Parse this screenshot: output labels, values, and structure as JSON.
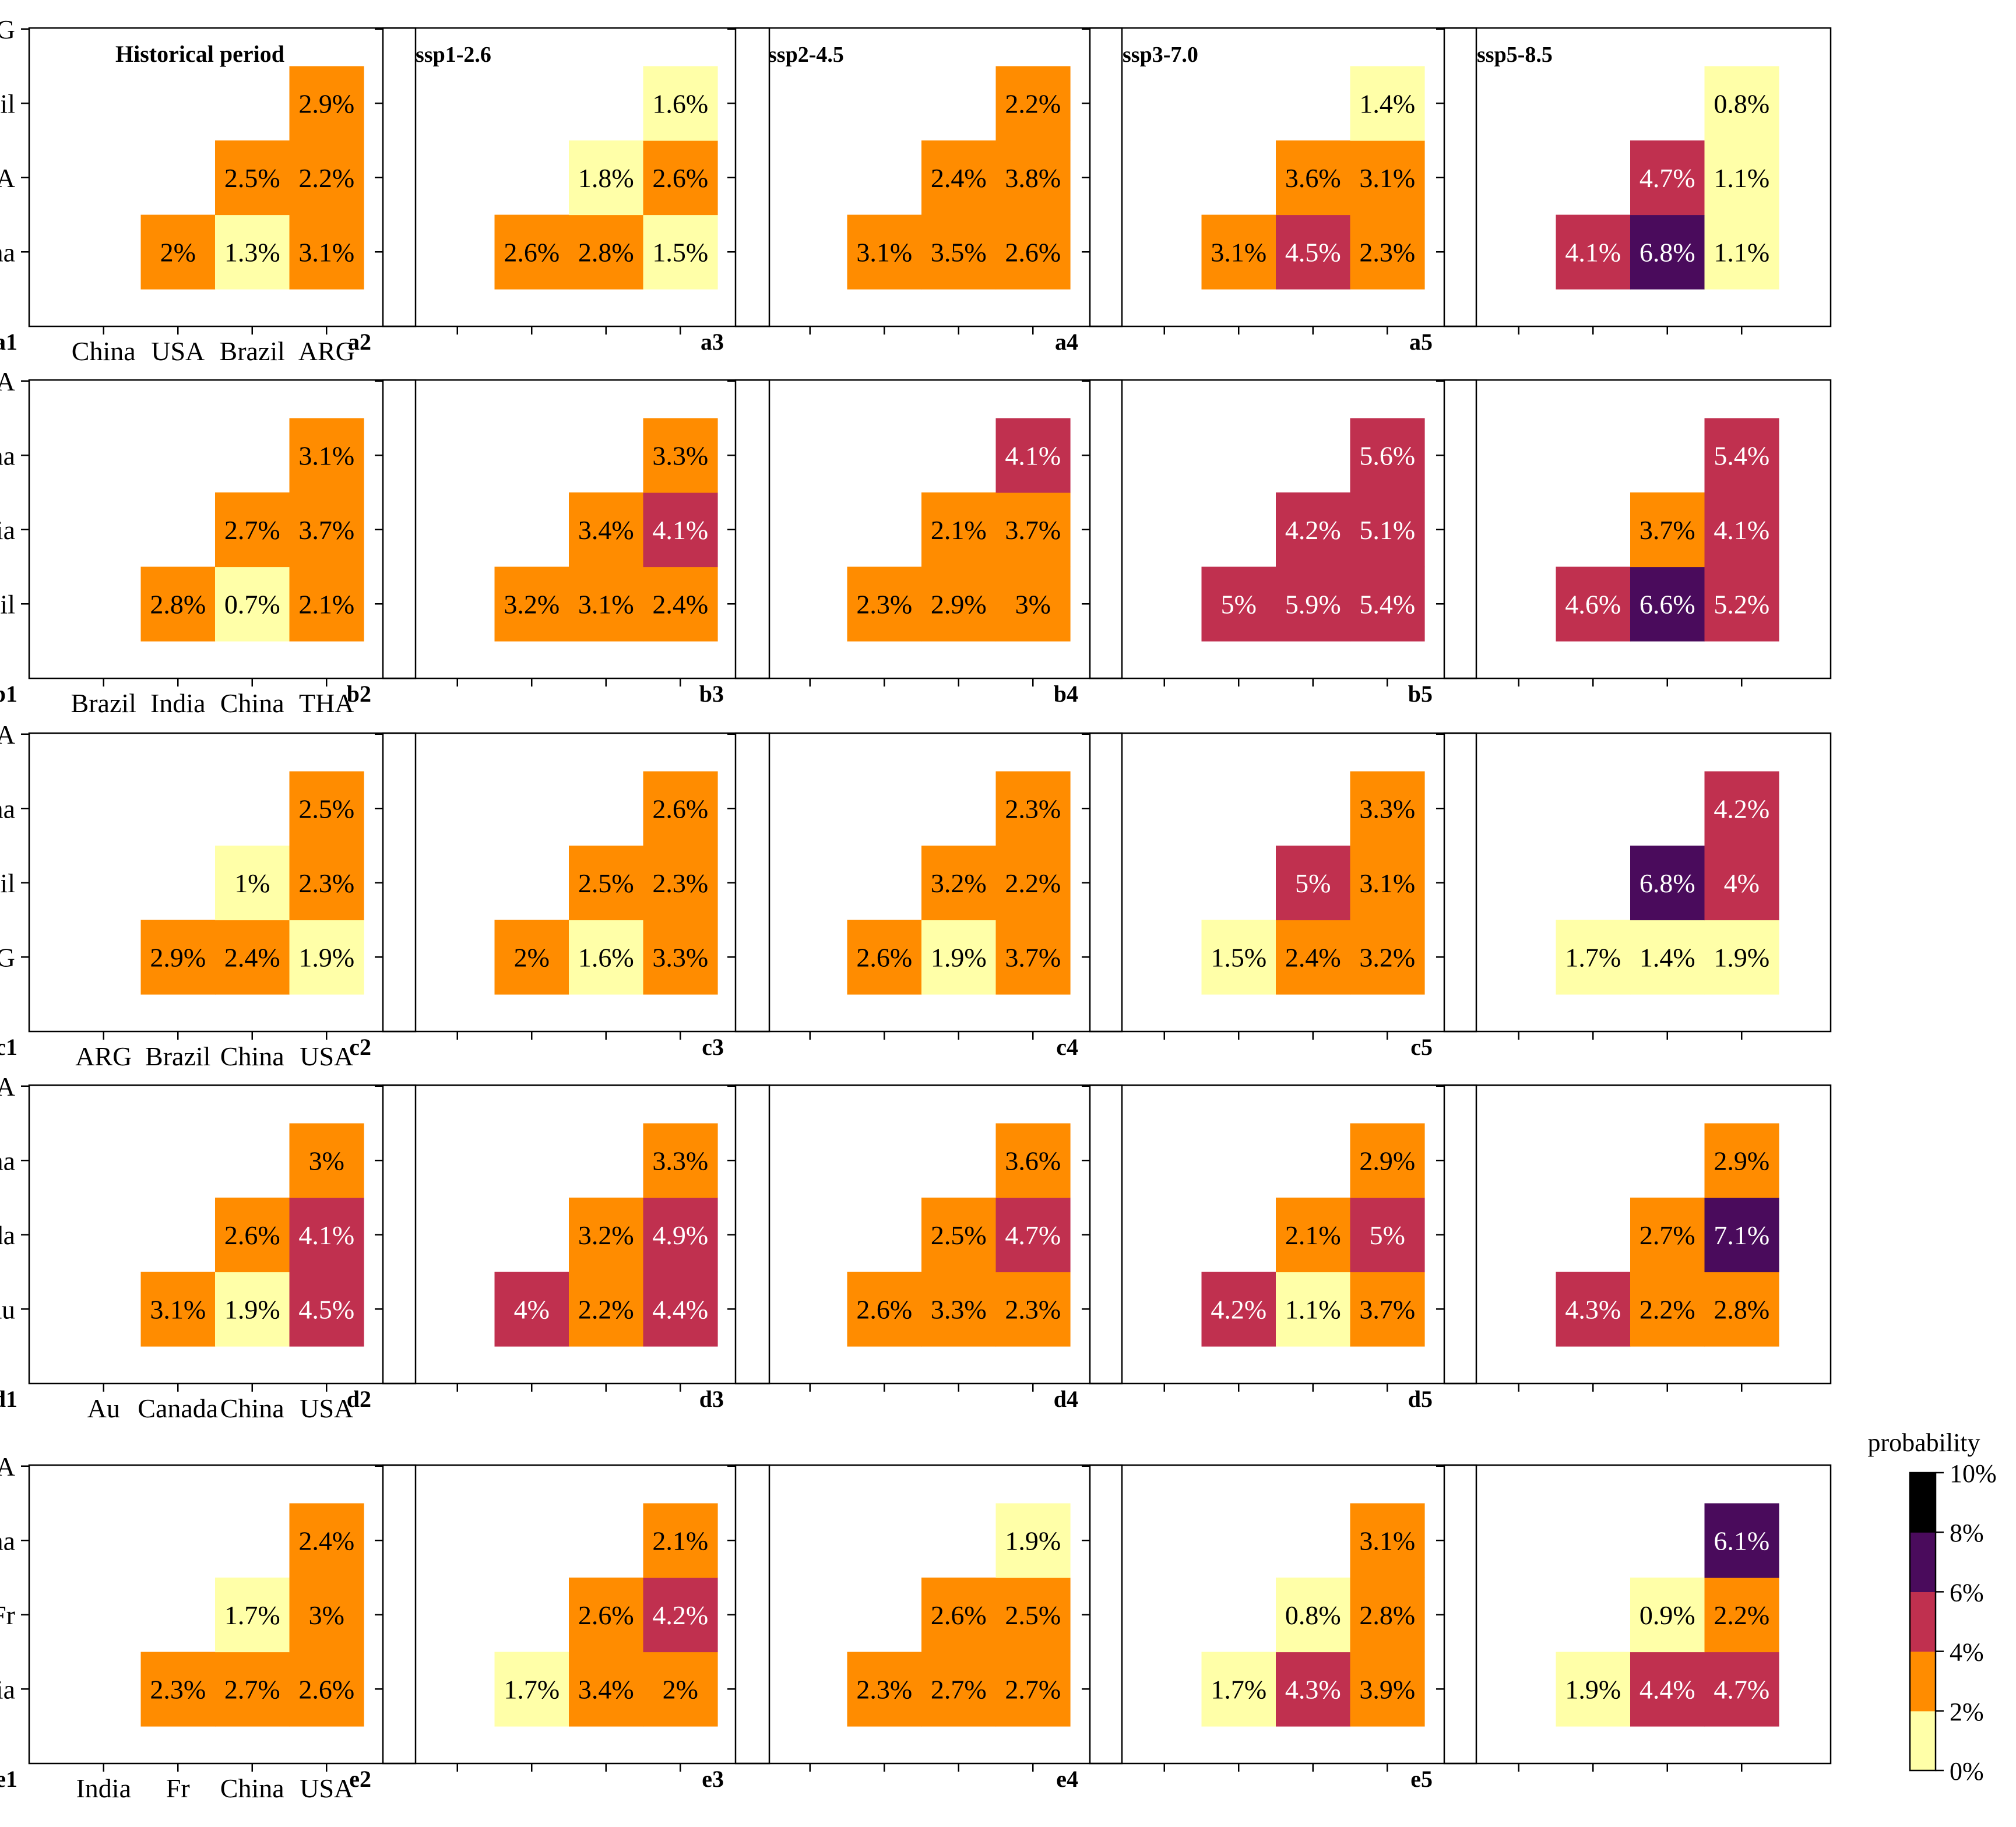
{
  "chart_data": {
    "type": "heatmap",
    "description_units": "joint probability (%)",
    "colorbar": {
      "title": "probability",
      "bins": [
        {
          "from": 0,
          "to": 2,
          "color": "#ffffa8"
        },
        {
          "from": 2,
          "to": 4,
          "color": "#ff8c00"
        },
        {
          "from": 4,
          "to": 6,
          "color": "#c0304f"
        },
        {
          "from": 6,
          "to": 8,
          "color": "#4a0b5c"
        },
        {
          "from": 8,
          "to": 10,
          "color": "#000000"
        }
      ],
      "tick_labels": [
        "0%",
        "2%",
        "4%",
        "6%",
        "8%",
        "10%"
      ]
    },
    "column_titles": [
      "Historical period",
      "ssp1-2.6",
      "ssp2-4.5",
      "ssp3-7.0",
      "ssp5-8.5"
    ],
    "rows": [
      {
        "countries": [
          "China",
          "USA",
          "Brazil",
          "ARG"
        ],
        "panel_labels": [
          "a1",
          "a2",
          "a3",
          "a4",
          "a5"
        ],
        "panels": [
          {
            "USA|China": "2%",
            "Brazil|China": "1.3%",
            "Brazil|USA": "2.5%",
            "ARG|China": "3.1%",
            "ARG|USA": "2.2%",
            "ARG|Brazil": "2.9%"
          },
          {
            "USA|China": "2.6%",
            "Brazil|China": "2.8%",
            "Brazil|USA": "1.8%",
            "ARG|China": "1.5%",
            "ARG|USA": "2.6%",
            "ARG|Brazil": "1.6%"
          },
          {
            "USA|China": "3.1%",
            "Brazil|China": "3.5%",
            "Brazil|USA": "2.4%",
            "ARG|China": "2.6%",
            "ARG|USA": "3.8%",
            "ARG|Brazil": "2.2%"
          },
          {
            "USA|China": "3.1%",
            "Brazil|China": "4.5%",
            "Brazil|USA": "3.6%",
            "ARG|China": "2.3%",
            "ARG|USA": "3.1%",
            "ARG|Brazil": "1.4%"
          },
          {
            "USA|China": "4.1%",
            "Brazil|China": "6.8%",
            "Brazil|USA": "4.7%",
            "ARG|China": "1.1%",
            "ARG|USA": "1.1%",
            "ARG|Brazil": "0.8%"
          }
        ]
      },
      {
        "countries": [
          "Brazil",
          "India",
          "China",
          "THA"
        ],
        "panel_labels": [
          "b1",
          "b2",
          "b3",
          "b4",
          "b5"
        ],
        "panels": [
          {
            "India|Brazil": "2.8%",
            "China|Brazil": "0.7%",
            "China|India": "2.7%",
            "THA|Brazil": "2.1%",
            "THA|India": "3.7%",
            "THA|China": "3.1%"
          },
          {
            "India|Brazil": "3.2%",
            "China|Brazil": "3.1%",
            "China|India": "3.4%",
            "THA|Brazil": "2.4%",
            "THA|India": "4.1%",
            "THA|China": "3.3%"
          },
          {
            "India|Brazil": "2.3%",
            "China|Brazil": "2.9%",
            "China|India": "2.1%",
            "THA|Brazil": "3%",
            "THA|India": "3.7%",
            "THA|China": "4.1%"
          },
          {
            "India|Brazil": "5%",
            "China|Brazil": "5.9%",
            "China|India": "4.2%",
            "THA|Brazil": "5.4%",
            "THA|India": "5.1%",
            "THA|China": "5.6%"
          },
          {
            "India|Brazil": "4.6%",
            "China|Brazil": "6.6%",
            "China|India": "3.7%",
            "THA|Brazil": "5.2%",
            "THA|India": "4.1%",
            "THA|China": "5.4%"
          }
        ]
      },
      {
        "countries": [
          "ARG",
          "Brazil",
          "China",
          "USA"
        ],
        "panel_labels": [
          "c1",
          "c2",
          "c3",
          "c4",
          "c5"
        ],
        "panels": [
          {
            "Brazil|ARG": "2.9%",
            "China|ARG": "2.4%",
            "China|Brazil": "1%",
            "USA|ARG": "1.9%",
            "USA|Brazil": "2.3%",
            "USA|China": "2.5%"
          },
          {
            "Brazil|ARG": "2%",
            "China|ARG": "1.6%",
            "China|Brazil": "2.5%",
            "USA|ARG": "3.3%",
            "USA|Brazil": "2.3%",
            "USA|China": "2.6%"
          },
          {
            "Brazil|ARG": "2.6%",
            "China|ARG": "1.9%",
            "China|Brazil": "3.2%",
            "USA|ARG": "3.7%",
            "USA|Brazil": "2.2%",
            "USA|China": "2.3%"
          },
          {
            "Brazil|ARG": "1.5%",
            "China|ARG": "2.4%",
            "China|Brazil": "5%",
            "USA|ARG": "3.2%",
            "USA|Brazil": "3.1%",
            "USA|China": "3.3%"
          },
          {
            "Brazil|ARG": "1.7%",
            "China|ARG": "1.4%",
            "China|Brazil": "6.8%",
            "USA|ARG": "1.9%",
            "USA|Brazil": "4%",
            "USA|China": "4.2%"
          }
        ]
      },
      {
        "countries": [
          "Au",
          "Canada",
          "China",
          "USA"
        ],
        "panel_labels": [
          "d1",
          "d2",
          "d3",
          "d4",
          "d5"
        ],
        "panels": [
          {
            "Canada|Au": "3.1%",
            "China|Au": "1.9%",
            "China|Canada": "2.6%",
            "USA|Au": "4.5%",
            "USA|Canada": "4.1%",
            "USA|China": "3%"
          },
          {
            "Canada|Au": "4%",
            "China|Au": "2.2%",
            "China|Canada": "3.2%",
            "USA|Au": "4.4%",
            "USA|Canada": "4.9%",
            "USA|China": "3.3%"
          },
          {
            "Canada|Au": "2.6%",
            "China|Au": "3.3%",
            "China|Canada": "2.5%",
            "USA|Au": "2.3%",
            "USA|Canada": "4.7%",
            "USA|China": "3.6%"
          },
          {
            "Canada|Au": "4.2%",
            "China|Au": "1.1%",
            "China|Canada": "2.1%",
            "USA|Au": "3.7%",
            "USA|Canada": "5%",
            "USA|China": "2.9%"
          },
          {
            "Canada|Au": "4.3%",
            "China|Au": "2.2%",
            "China|Canada": "2.7%",
            "USA|Au": "2.8%",
            "USA|Canada": "7.1%",
            "USA|China": "2.9%"
          }
        ]
      },
      {
        "countries": [
          "India",
          "Fr",
          "China",
          "USA"
        ],
        "panel_labels": [
          "e1",
          "e2",
          "e3",
          "e4",
          "e5"
        ],
        "panels": [
          {
            "Fr|India": "2.3%",
            "China|India": "2.7%",
            "China|Fr": "1.7%",
            "USA|India": "2.6%",
            "USA|Fr": "3%",
            "USA|China": "2.4%"
          },
          {
            "Fr|India": "1.7%",
            "China|India": "3.4%",
            "China|Fr": "2.6%",
            "USA|India": "2%",
            "USA|Fr": "4.2%",
            "USA|China": "2.1%"
          },
          {
            "Fr|India": "2.3%",
            "China|India": "2.7%",
            "China|Fr": "2.6%",
            "USA|India": "2.7%",
            "USA|Fr": "2.5%",
            "USA|China": "1.9%"
          },
          {
            "Fr|India": "1.7%",
            "China|India": "4.3%",
            "China|Fr": "0.8%",
            "USA|India": "3.9%",
            "USA|Fr": "2.8%",
            "USA|China": "3.1%"
          },
          {
            "Fr|India": "1.9%",
            "China|India": "4.4%",
            "China|Fr": "0.9%",
            "USA|India": "4.7%",
            "USA|Fr": "2.2%",
            "USA|China": "6.1%"
          }
        ]
      }
    ]
  }
}
